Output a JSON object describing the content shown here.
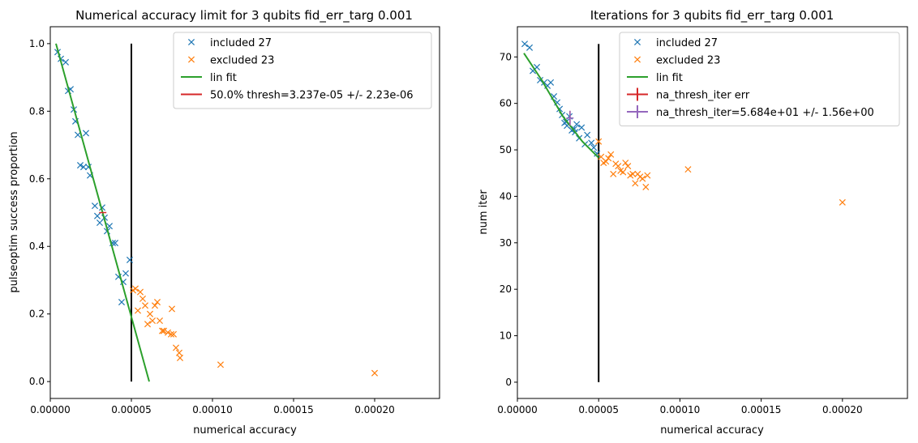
{
  "colors": {
    "included": "#1f77b4",
    "excluded": "#ff7f0e",
    "fit": "#2ca02c",
    "thresh": "#d62728",
    "thresh_iter": "#9467bd",
    "vline": "#000000"
  },
  "chart_data": [
    {
      "type": "scatter",
      "title": "Numerical accuracy limit for 3 qubits fid_err_targ 0.001",
      "xlabel": "numerical accuracy",
      "ylabel": "pulseoptim success proportion",
      "xlim": [
        0,
        0.00024
      ],
      "ylim": [
        -0.05,
        1.05
      ],
      "xticks": [
        0,
        5e-05,
        0.0001,
        0.00015,
        0.0002
      ],
      "xtick_labels": [
        "0.00000",
        "0.00005",
        "0.00010",
        "0.00015",
        "0.00020"
      ],
      "yticks": [
        0.0,
        0.2,
        0.4,
        0.6,
        0.8,
        1.0
      ],
      "ytick_labels": [
        "0.0",
        "0.2",
        "0.4",
        "0.6",
        "0.8",
        "1.0"
      ],
      "legend_position": "top-right",
      "series": [
        {
          "name": "included 27",
          "kind": "x-marker",
          "color_key": "included",
          "points": [
            [
              4.5e-06,
              0.975
            ],
            [
              6.5e-06,
              0.955
            ],
            [
              9.5e-06,
              0.945
            ],
            [
              1.1e-05,
              0.86
            ],
            [
              1.25e-05,
              0.865
            ],
            [
              1.45e-05,
              0.805
            ],
            [
              1.55e-05,
              0.77
            ],
            [
              1.7e-05,
              0.73
            ],
            [
              1.85e-05,
              0.64
            ],
            [
              2.05e-05,
              0.635
            ],
            [
              2.2e-05,
              0.735
            ],
            [
              2.35e-05,
              0.635
            ],
            [
              2.45e-05,
              0.61
            ],
            [
              2.75e-05,
              0.52
            ],
            [
              2.9e-05,
              0.49
            ],
            [
              3.05e-05,
              0.47
            ],
            [
              3.2e-05,
              0.515
            ],
            [
              3.35e-05,
              0.485
            ],
            [
              3.5e-05,
              0.445
            ],
            [
              3.65e-05,
              0.46
            ],
            [
              3.85e-05,
              0.41
            ],
            [
              4e-05,
              0.41
            ],
            [
              4.2e-05,
              0.31
            ],
            [
              4.4e-05,
              0.235
            ],
            [
              4.5e-05,
              0.295
            ],
            [
              4.65e-05,
              0.32
            ],
            [
              4.9e-05,
              0.36
            ]
          ]
        },
        {
          "name": "excluded 23",
          "kind": "x-marker",
          "color_key": "excluded",
          "points": [
            [
              5.1e-05,
              0.27
            ],
            [
              5.25e-05,
              0.275
            ],
            [
              5.4e-05,
              0.21
            ],
            [
              5.55e-05,
              0.265
            ],
            [
              5.7e-05,
              0.245
            ],
            [
              5.85e-05,
              0.225
            ],
            [
              6e-05,
              0.17
            ],
            [
              6.15e-05,
              0.2
            ],
            [
              6.3e-05,
              0.18
            ],
            [
              6.45e-05,
              0.225
            ],
            [
              6.6e-05,
              0.235
            ],
            [
              6.75e-05,
              0.18
            ],
            [
              6.9e-05,
              0.15
            ],
            [
              7e-05,
              0.15
            ],
            [
              7.25e-05,
              0.145
            ],
            [
              7.45e-05,
              0.14
            ],
            [
              7.5e-05,
              0.215
            ],
            [
              7.6e-05,
              0.14
            ],
            [
              7.75e-05,
              0.1
            ],
            [
              7.95e-05,
              0.085
            ],
            [
              8e-05,
              0.07
            ],
            [
              0.000105,
              0.05
            ],
            [
              0.0002,
              0.025
            ]
          ]
        },
        {
          "name": "lin fit",
          "kind": "line",
          "color_key": "fit",
          "points": [
            [
              3.5e-06,
              1.0
            ],
            [
              6.1e-05,
              0.0
            ]
          ]
        },
        {
          "name": "50.0% thresh=3.237e-05 +/- 2.23e-06",
          "kind": "errorbar",
          "color_key": "thresh",
          "point": [
            3.237e-05,
            0.5
          ],
          "xerr": 2.23e-06
        }
      ],
      "vline": {
        "x": 5e-05,
        "ymin": 0.0,
        "ymax": 1.0
      }
    },
    {
      "type": "scatter",
      "title": "Iterations for 3 qubits fid_err_targ 0.001",
      "xlabel": "numerical accuracy",
      "ylabel": "num iter",
      "xlim": [
        0,
        0.00024
      ],
      "ylim": [
        -3.5,
        76.5
      ],
      "xticks": [
        0,
        5e-05,
        0.0001,
        0.00015,
        0.0002
      ],
      "xtick_labels": [
        "0.00000",
        "0.00005",
        "0.00010",
        "0.00015",
        "0.00020"
      ],
      "yticks": [
        0,
        10,
        20,
        30,
        40,
        50,
        60,
        70
      ],
      "ytick_labels": [
        "0",
        "10",
        "20",
        "30",
        "40",
        "50",
        "60",
        "70"
      ],
      "legend_position": "top-right",
      "series": [
        {
          "name": "included 27",
          "kind": "x-marker",
          "color_key": "included",
          "points": [
            [
              4.5e-06,
              72.8
            ],
            [
              7.5e-06,
              72.0
            ],
            [
              9.5e-06,
              67.0
            ],
            [
              1.2e-05,
              67.8
            ],
            [
              1.4e-05,
              65.0
            ],
            [
              1.65e-05,
              64.5
            ],
            [
              1.85e-05,
              63.8
            ],
            [
              2.05e-05,
              64.5
            ],
            [
              2.25e-05,
              61.5
            ],
            [
              2.45e-05,
              60.2
            ],
            [
              2.6e-05,
              58.8
            ],
            [
              2.75e-05,
              57.5
            ],
            [
              2.9e-05,
              55.8
            ],
            [
              3.05e-05,
              55.2
            ],
            [
              3.2e-05,
              57.2
            ],
            [
              3.35e-05,
              54.2
            ],
            [
              3.5e-05,
              54.5
            ],
            [
              3.65e-05,
              55.5
            ],
            [
              3.8e-05,
              52.5
            ],
            [
              3.95e-05,
              54.8
            ],
            [
              4.15e-05,
              51.2
            ],
            [
              4.3e-05,
              53.2
            ],
            [
              4.55e-05,
              51.5
            ],
            [
              4.7e-05,
              50.5
            ],
            [
              4.9e-05,
              49.2
            ],
            [
              3e-05,
              56.0
            ],
            [
              3.55e-05,
              53.8
            ]
          ]
        },
        {
          "name": "excluded 23",
          "kind": "x-marker",
          "color_key": "excluded",
          "points": [
            [
              5e-05,
              51.8
            ],
            [
              5.15e-05,
              48.5
            ],
            [
              5.3e-05,
              47.2
            ],
            [
              5.45e-05,
              47.5
            ],
            [
              5.6e-05,
              48.2
            ],
            [
              5.75e-05,
              49.0
            ],
            [
              5.9e-05,
              44.8
            ],
            [
              6.05e-05,
              47.0
            ],
            [
              6.2e-05,
              46.5
            ],
            [
              6.35e-05,
              45.5
            ],
            [
              6.5e-05,
              45.2
            ],
            [
              6.65e-05,
              47.2
            ],
            [
              6.8e-05,
              46.5
            ],
            [
              6.95e-05,
              44.5
            ],
            [
              7.1e-05,
              44.8
            ],
            [
              7.25e-05,
              42.8
            ],
            [
              7.4e-05,
              44.8
            ],
            [
              7.55e-05,
              44.2
            ],
            [
              7.7e-05,
              43.8
            ],
            [
              7.9e-05,
              42.0
            ],
            [
              8e-05,
              44.5
            ],
            [
              0.000105,
              45.8
            ],
            [
              0.0002,
              38.7
            ]
          ]
        },
        {
          "name": "lin fit",
          "kind": "line",
          "color_key": "fit",
          "points": [
            [
              4e-06,
              70.8
            ],
            [
              1.5e-05,
              65.0
            ],
            [
              2.8e-05,
              57.2
            ],
            [
              4e-05,
              51.8
            ],
            [
              5e-05,
              48.3
            ]
          ]
        },
        {
          "name": "na_thresh_iter err",
          "kind": "errorbar",
          "color_key": "thresh",
          "point": [
            3.237e-05,
            56.84
          ],
          "yerr": 1.56
        },
        {
          "name": "na_thresh_iter=5.684e+01 +/- 1.56e+00",
          "kind": "errorbar",
          "color_key": "thresh_iter",
          "point": [
            3.237e-05,
            56.84
          ],
          "xerr": 2.23e-06,
          "yerr": 1.56
        }
      ],
      "vline": {
        "x": 5e-05,
        "ymin": 0.0,
        "ymax": 72.8
      }
    }
  ]
}
